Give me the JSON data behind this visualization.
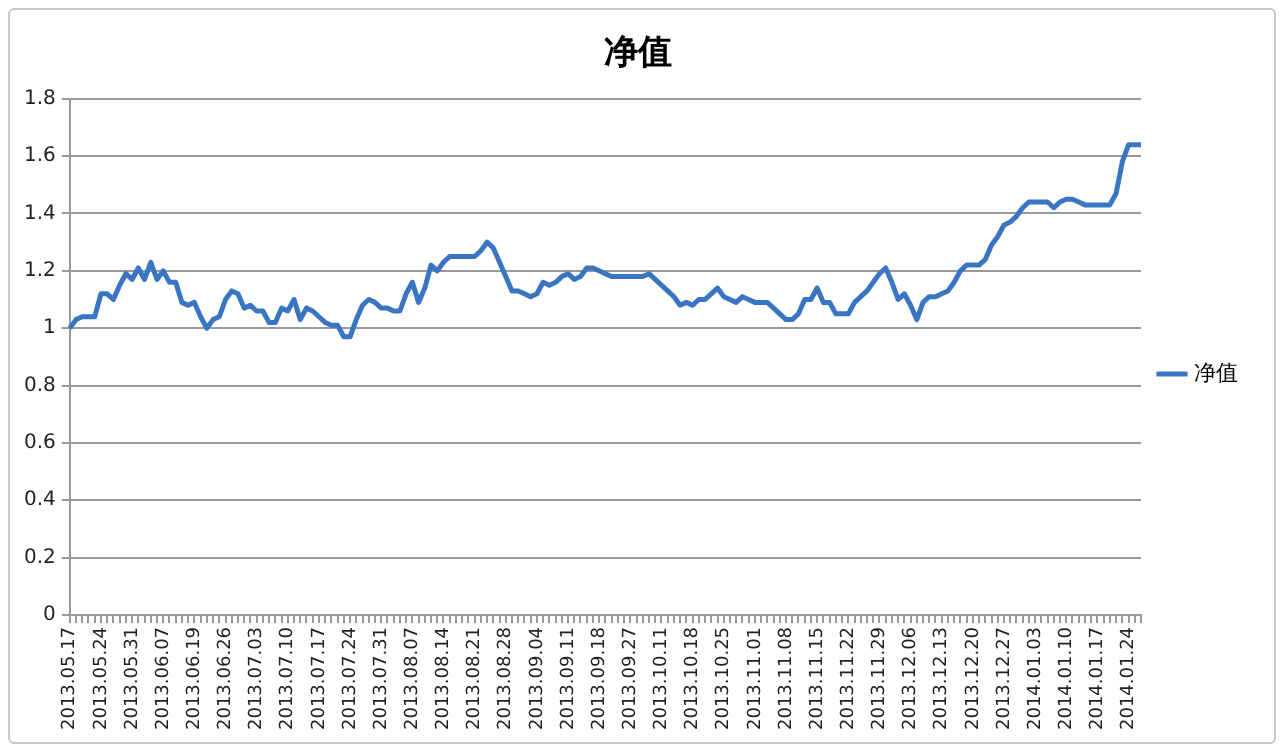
{
  "chart_data": {
    "type": "line",
    "title": "净值",
    "categories": [
      "2013.05.17",
      null,
      null,
      null,
      null,
      "2013.05.24",
      null,
      null,
      null,
      null,
      "2013.05.31",
      null,
      null,
      null,
      null,
      "2013.06.07",
      null,
      null,
      null,
      null,
      "2013.06.19",
      null,
      null,
      null,
      null,
      "2013.06.26",
      null,
      null,
      null,
      null,
      "2013.07.03",
      null,
      null,
      null,
      null,
      "2013.07.10",
      null,
      null,
      null,
      null,
      "2013.07.17",
      null,
      null,
      null,
      null,
      "2013.07.24",
      null,
      null,
      null,
      null,
      "2013.07.31",
      null,
      null,
      null,
      null,
      "2013.08.07",
      null,
      null,
      null,
      null,
      "2013.08.14",
      null,
      null,
      null,
      null,
      "2013.08.21",
      null,
      null,
      null,
      null,
      "2013.08.28",
      null,
      null,
      null,
      null,
      "2013.09.04",
      null,
      null,
      null,
      null,
      "2013.09.11",
      null,
      null,
      null,
      null,
      "2013.09.18",
      null,
      null,
      null,
      null,
      "2013.09.27",
      null,
      null,
      null,
      null,
      "2013.10.11",
      null,
      null,
      null,
      null,
      "2013.10.18",
      null,
      null,
      null,
      null,
      "2013.10.25",
      null,
      null,
      null,
      null,
      "2013.11.01",
      null,
      null,
      null,
      null,
      "2013.11.08",
      null,
      null,
      null,
      null,
      "2013.11.15",
      null,
      null,
      null,
      null,
      "2013.11.22",
      null,
      null,
      null,
      null,
      "2013.11.29",
      null,
      null,
      null,
      null,
      "2013.12.06",
      null,
      null,
      null,
      null,
      "2013.12.13",
      null,
      null,
      null,
      null,
      "2013.12.20",
      null,
      null,
      null,
      null,
      "2013.12.27",
      null,
      null,
      null,
      null,
      "2014.01.03",
      null,
      null,
      null,
      null,
      "2014.01.10",
      null,
      null,
      null,
      null,
      "2014.01.17",
      null,
      null,
      null,
      null,
      "2014.01.24",
      null,
      null
    ],
    "series": [
      {
        "name": "净值",
        "color": "#3a75c4",
        "values": [
          1.0,
          1.03,
          1.04,
          1.04,
          1.04,
          1.12,
          1.12,
          1.1,
          1.15,
          1.19,
          1.17,
          1.21,
          1.17,
          1.23,
          1.17,
          1.2,
          1.16,
          1.16,
          1.09,
          1.08,
          1.09,
          1.04,
          1.0,
          1.03,
          1.04,
          1.1,
          1.13,
          1.12,
          1.07,
          1.08,
          1.06,
          1.06,
          1.02,
          1.02,
          1.07,
          1.06,
          1.1,
          1.03,
          1.07,
          1.06,
          1.04,
          1.02,
          1.01,
          1.01,
          0.97,
          0.97,
          1.03,
          1.08,
          1.1,
          1.09,
          1.07,
          1.07,
          1.06,
          1.06,
          1.12,
          1.16,
          1.09,
          1.14,
          1.22,
          1.2,
          1.23,
          1.25,
          1.25,
          1.25,
          1.25,
          1.25,
          1.27,
          1.3,
          1.28,
          1.23,
          1.18,
          1.13,
          1.13,
          1.12,
          1.11,
          1.12,
          1.16,
          1.15,
          1.16,
          1.18,
          1.19,
          1.17,
          1.18,
          1.21,
          1.21,
          1.2,
          1.19,
          1.18,
          1.18,
          1.18,
          1.18,
          1.18,
          1.18,
          1.19,
          1.17,
          1.15,
          1.13,
          1.11,
          1.08,
          1.09,
          1.08,
          1.1,
          1.1,
          1.12,
          1.14,
          1.11,
          1.1,
          1.09,
          1.11,
          1.1,
          1.09,
          1.09,
          1.09,
          1.07,
          1.05,
          1.03,
          1.03,
          1.05,
          1.1,
          1.1,
          1.14,
          1.09,
          1.09,
          1.05,
          1.05,
          1.05,
          1.09,
          1.11,
          1.13,
          1.16,
          1.19,
          1.21,
          1.16,
          1.1,
          1.12,
          1.08,
          1.03,
          1.09,
          1.11,
          1.11,
          1.12,
          1.13,
          1.16,
          1.2,
          1.22,
          1.22,
          1.22,
          1.24,
          1.29,
          1.32,
          1.36,
          1.37,
          1.39,
          1.42,
          1.44,
          1.44,
          1.44,
          1.44,
          1.42,
          1.44,
          1.45,
          1.45,
          1.44,
          1.43,
          1.43,
          1.43,
          1.43,
          1.43,
          1.47,
          1.58,
          1.64,
          1.64,
          1.64
        ]
      }
    ],
    "ylim": [
      0,
      1.8
    ],
    "yticks": [
      0,
      0.2,
      0.4,
      0.6,
      0.8,
      1,
      1.2,
      1.4,
      1.6,
      1.8
    ],
    "grid": "y",
    "legend": "right"
  }
}
